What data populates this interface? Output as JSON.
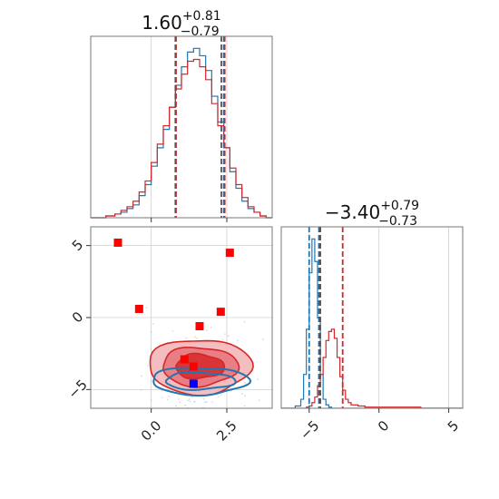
{
  "chart_data": [
    {
      "panel": "top-histogram",
      "type": "histogram",
      "title": {
        "median": "1.60",
        "upper": "+0.81",
        "lower": "−0.79"
      },
      "x_range": [
        -2.0,
        4.0
      ],
      "x_ticks": [
        0.0,
        2.5
      ],
      "grid": true,
      "colors": {
        "blue": "#1f77b4",
        "red": "#d62728"
      },
      "bins_x": [
        -2.0,
        -1.5,
        -1.2,
        -1.0,
        -0.8,
        -0.6,
        -0.4,
        -0.2,
        0.0,
        0.2,
        0.4,
        0.6,
        0.8,
        1.0,
        1.2,
        1.4,
        1.6,
        1.8,
        2.0,
        2.2,
        2.4,
        2.6,
        2.8,
        3.0,
        3.2,
        3.4,
        3.6,
        3.8,
        4.0
      ],
      "series": [
        {
          "color": "blue",
          "counts": [
            0,
            1,
            2,
            3,
            5,
            7,
            12,
            18,
            28,
            38,
            48,
            60,
            72,
            82,
            90,
            92,
            88,
            80,
            66,
            52,
            38,
            25,
            16,
            9,
            5,
            3,
            1,
            0
          ]
        },
        {
          "color": "red",
          "counts": [
            0,
            1,
            2,
            4,
            6,
            9,
            14,
            20,
            30,
            40,
            50,
            60,
            70,
            78,
            85,
            86,
            82,
            75,
            62,
            50,
            38,
            27,
            18,
            11,
            6,
            3,
            1,
            0
          ]
        }
      ],
      "quantile_lines": [
        {
          "color": "blue",
          "values": [
            0.81,
            2.4
          ]
        },
        {
          "color": "red",
          "values": [
            0.82,
            2.43
          ]
        },
        {
          "color": "grey",
          "values": [
            0.8,
            2.32
          ]
        }
      ]
    },
    {
      "panel": "right-histogram",
      "type": "histogram",
      "title": {
        "median": "−3.40",
        "upper": "+0.79",
        "lower": "−0.73"
      },
      "x_range": [
        -7.0,
        6.0
      ],
      "x_ticks": [
        -5,
        0,
        5
      ],
      "grid": true,
      "colors": {
        "blue": "#1f77b4",
        "red": "#d62728"
      },
      "bins_x": [
        -7.0,
        -6.0,
        -5.6,
        -5.4,
        -5.2,
        -5.0,
        -4.8,
        -4.6,
        -4.4,
        -4.2,
        -4.0,
        -3.8,
        -3.6,
        -3.4,
        -3.2,
        -3.0,
        -2.8,
        -2.6,
        -2.4,
        -2.2,
        -2.0,
        -1.5,
        -1.0,
        0.0,
        1.0,
        3.0,
        5.0,
        6.0
      ],
      "series": [
        {
          "color": "blue",
          "counts": [
            0,
            2,
            8,
            30,
            70,
            120,
            150,
            130,
            80,
            30,
            8,
            3,
            1,
            0,
            0,
            0,
            0,
            0,
            0,
            0,
            0,
            0,
            0,
            0,
            0,
            0,
            0
          ]
        },
        {
          "color": "red",
          "counts": [
            0,
            0,
            0,
            0,
            1,
            2,
            5,
            10,
            20,
            30,
            45,
            60,
            68,
            70,
            62,
            45,
            28,
            16,
            8,
            5,
            3,
            2,
            1,
            1,
            1,
            0,
            0
          ]
        }
      ],
      "quantile_lines": [
        {
          "color": "blue",
          "values": [
            -5.0,
            -4.3
          ]
        },
        {
          "color": "red",
          "values": [
            -4.2,
            -2.6
          ]
        },
        {
          "color": "grey",
          "values": [
            -4.25
          ]
        }
      ]
    },
    {
      "panel": "2d-contour",
      "type": "scatter",
      "x_range": [
        -2.0,
        4.0
      ],
      "y_range": [
        -6.3,
        6.3
      ],
      "x_ticks": [
        0.0,
        2.5
      ],
      "y_ticks": [
        5,
        0,
        -5
      ],
      "grid": true,
      "red_markers": [
        {
          "x": -1.1,
          "y": 5.2
        },
        {
          "x": -0.4,
          "y": 0.6
        },
        {
          "x": 1.6,
          "y": -0.6
        },
        {
          "x": 2.3,
          "y": 0.4
        },
        {
          "x": 2.6,
          "y": 4.5
        },
        {
          "x": 1.1,
          "y": -2.9
        },
        {
          "x": 1.4,
          "y": -3.4
        }
      ],
      "blue_markers": [
        {
          "x": 1.4,
          "y": -4.6
        }
      ],
      "red_contours": {
        "center": [
          1.6,
          -3.4
        ],
        "levels": [
          "outer",
          "middle",
          "inner"
        ]
      },
      "blue_contours": {
        "center": [
          1.6,
          -4.4
        ],
        "levels": [
          "outer",
          "inner"
        ]
      }
    }
  ],
  "ticks": {
    "top_x": [
      "0.0",
      "2.5"
    ],
    "left_y": [
      "5",
      "0",
      "−5"
    ],
    "bottom_x": [
      "0.0",
      "2.5"
    ],
    "right_x": [
      "−5",
      "0",
      "5"
    ]
  }
}
